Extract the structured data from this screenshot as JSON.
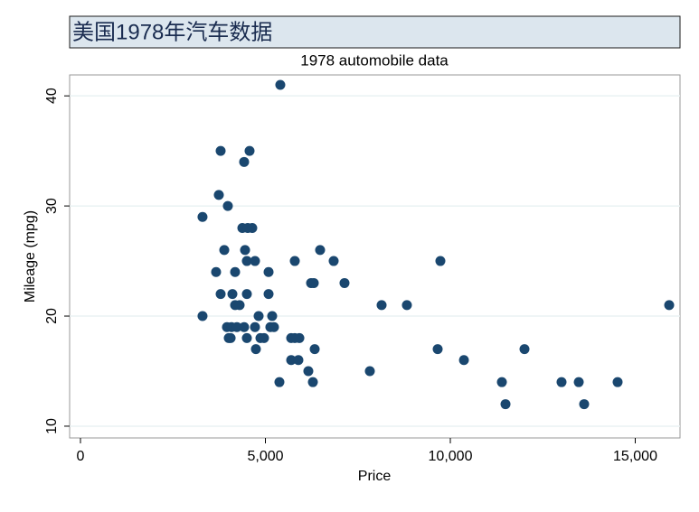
{
  "header": {
    "title": "美国1978年汽车数据"
  },
  "chart_data": {
    "type": "scatter",
    "title": "1978 automobile data",
    "x_label": "Price",
    "y_label": "Mileage (mpg)",
    "color": "#1a476f",
    "grid": true,
    "xlim": [
      -293,
      16210
    ],
    "ylim": [
      8.93,
      41.9
    ],
    "xticks": [
      0,
      {
        "value": 5000,
        "label": "5,000"
      },
      {
        "value": 10000,
        "label": "10,000"
      },
      {
        "value": 15000,
        "label": "15,000"
      }
    ],
    "yticks": [
      10,
      20,
      30,
      40
    ],
    "x": [
      5403,
      3790,
      4572,
      4425,
      3741,
      3300,
      3985,
      4377,
      4523,
      4645,
      3888,
      4450,
      6479,
      4499,
      4719,
      5795,
      6846,
      9731,
      3667,
      4181,
      5086,
      6235,
      6308,
      7139,
      3790,
      4108,
      4499,
      5086,
      4181,
      4303,
      8142,
      8826,
      15917,
      3300,
      4817,
      5183,
      3961,
      4083,
      4230,
      4425,
      4719,
      5134,
      5232,
      4010,
      4060,
      4499,
      4866,
      4963,
      5697,
      5795,
      5918,
      4743,
      6333,
      9658,
      12005,
      5697,
      5892,
      10367,
      6161,
      7824,
      5379,
      6284,
      11394,
      13007,
      13472,
      14523,
      11492,
      13618
    ],
    "values": [
      41,
      35,
      35,
      34,
      31,
      29,
      30,
      28,
      28,
      28,
      26,
      26,
      26,
      25,
      25,
      25,
      25,
      25,
      24,
      24,
      24,
      23,
      23,
      23,
      22,
      22,
      22,
      22,
      21,
      21,
      21,
      21,
      21,
      20,
      20,
      20,
      19,
      19,
      19,
      19,
      19,
      19,
      19,
      18,
      18,
      18,
      18,
      18,
      18,
      18,
      18,
      17,
      17,
      17,
      17,
      16,
      16,
      16,
      15,
      15,
      14,
      14,
      14,
      14,
      14,
      14,
      12,
      12
    ]
  }
}
